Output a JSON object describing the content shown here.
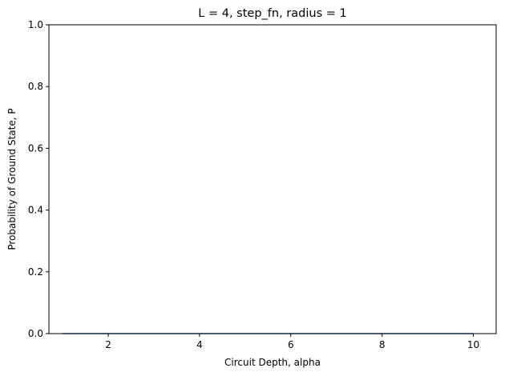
{
  "chart_data": {
    "type": "line",
    "title": "L = 4, step_fn, radius = 1",
    "xlabel": "Circuit Depth, alpha",
    "ylabel": "Probability of Ground State, P",
    "xlim": [
      0.7,
      10.5
    ],
    "ylim": [
      0,
      1
    ],
    "xticks": [
      2,
      4,
      6,
      8,
      10
    ],
    "yticks": [
      0.0,
      0.2,
      0.4,
      0.6,
      0.8,
      1.0
    ],
    "xtick_labels": [
      "2",
      "4",
      "6",
      "8",
      "10"
    ],
    "ytick_labels": [
      "0.0",
      "0.2",
      "0.4",
      "0.6",
      "0.8",
      "1.0"
    ],
    "grid": false,
    "series": [
      {
        "color": "#1f77b4",
        "x": [
          1,
          2,
          3,
          4,
          5,
          6,
          7,
          8,
          9,
          10
        ],
        "y": [
          0,
          0,
          0,
          0,
          0,
          0,
          0,
          0,
          0,
          0
        ]
      }
    ]
  }
}
